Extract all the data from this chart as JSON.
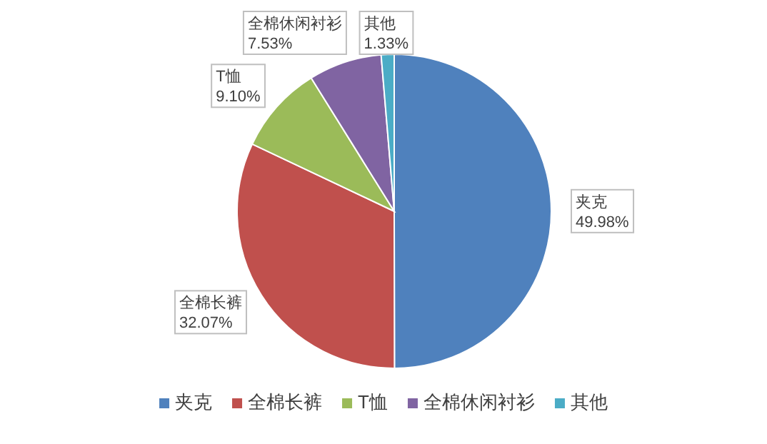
{
  "chart_data": {
    "type": "pie",
    "categories": [
      "夹克",
      "全棉长裤",
      "T恤",
      "全棉休闲衬衫",
      "其他"
    ],
    "values": [
      49.98,
      32.07,
      9.1,
      7.53,
      1.33
    ],
    "colors": [
      "#4f81bd",
      "#c0504d",
      "#9bbb59",
      "#8064a2",
      "#4bacc6"
    ],
    "value_labels": [
      "49.98%",
      "32.07%",
      "9.10%",
      "7.53%",
      "1.33%"
    ],
    "legend": "bottom"
  }
}
